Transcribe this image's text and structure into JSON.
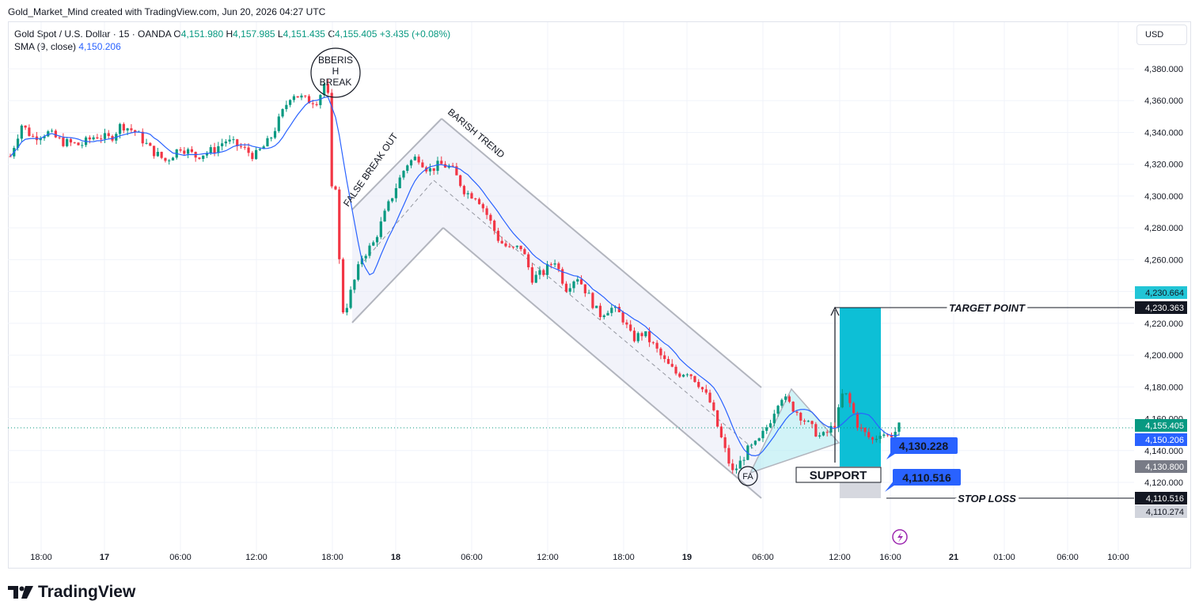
{
  "header": "Gold_Market_Mind created with TradingView.com, Jun 20, 2026 04:27 UTC",
  "legend": {
    "symbol": "Gold Spot / U.S. Dollar · 15 · OANDA",
    "o_label": "O",
    "o_value": "4,151.980",
    "h_label": "H",
    "h_value": "4,157.985",
    "l_label": "L",
    "l_value": "4,151.435",
    "c_label": "C",
    "c_value": "4,155.405",
    "change": "+3.435 (+0.08%)",
    "sma_label": "SMA (9, close)",
    "sma_value": "4,150.206"
  },
  "currency": "USD",
  "brand": "TradingView",
  "colors": {
    "up": "#089981",
    "down": "#f23645",
    "sma": "#2962ff",
    "target": "#00bcd4"
  },
  "chart_data": {
    "type": "candlestick",
    "y_ticks": [
      "4,380.000",
      "4,360.000",
      "4,340.000",
      "4,320.000",
      "4,300.000",
      "4,280.000",
      "4,260.000",
      "4,240.000",
      "4,220.000",
      "4,200.000",
      "4,180.000",
      "4,160.000",
      "4,140.000",
      "4,120.000"
    ],
    "x_ticks": [
      "18:00",
      "17",
      "06:00",
      "12:00",
      "18:00",
      "18",
      "06:00",
      "12:00",
      "18:00",
      "19",
      "06:00",
      "12:00",
      "16:00",
      "21",
      "01:00",
      "06:00",
      "10:00"
    ],
    "ylim": [
      4100,
      4395
    ],
    "price_labels": [
      {
        "value": "4,230.664",
        "color": "#22c5d6",
        "text_color": "#131722"
      },
      {
        "value": "4,230.363",
        "color": "#131722",
        "text_color": "#ffffff"
      },
      {
        "value": "4,155.405",
        "color": "#089981",
        "text_color": "#ffffff"
      },
      {
        "value": "4,150.206",
        "color": "#2962ff",
        "text_color": "#ffffff"
      },
      {
        "value": "4,130.800",
        "color": "#787b86",
        "text_color": "#ffffff"
      },
      {
        "value": "4,110.516",
        "color": "#131722",
        "text_color": "#ffffff"
      },
      {
        "value": "4,110.274",
        "color": "#d1d4dc",
        "text_color": "#131722"
      }
    ],
    "annotations": {
      "target_point": "TARGET POINT",
      "stop_loss": "STOP LOSS",
      "support": "SUPPORT",
      "false_break": "FALSE BREAK OUT",
      "barish_trend": "BARISH TREND",
      "bberish_l1": "BBERIS",
      "bberish_l2": "H",
      "bberish_l3": "BREAK",
      "fa": "FA",
      "label_4130": "4,130.228",
      "label_4110": "4,110.516"
    },
    "anchors": [
      {
        "t": 0,
        "p": 4325
      },
      {
        "t": 3,
        "p": 4345
      },
      {
        "t": 6,
        "p": 4337
      },
      {
        "t": 10,
        "p": 4340
      },
      {
        "t": 14,
        "p": 4334
      },
      {
        "t": 19,
        "p": 4332
      },
      {
        "t": 23,
        "p": 4338
      },
      {
        "t": 27,
        "p": 4336
      },
      {
        "t": 30,
        "p": 4345
      },
      {
        "t": 34,
        "p": 4340
      },
      {
        "t": 38,
        "p": 4329
      },
      {
        "t": 42,
        "p": 4322
      },
      {
        "t": 46,
        "p": 4331
      },
      {
        "t": 50,
        "p": 4325
      },
      {
        "t": 55,
        "p": 4329
      },
      {
        "t": 58,
        "p": 4335
      },
      {
        "t": 62,
        "p": 4331
      },
      {
        "t": 66,
        "p": 4325
      },
      {
        "t": 70,
        "p": 4335
      },
      {
        "t": 73,
        "p": 4350
      },
      {
        "t": 76,
        "p": 4365
      },
      {
        "t": 80,
        "p": 4360
      },
      {
        "t": 83,
        "p": 4360
      },
      {
        "t": 85,
        "p": 4372
      },
      {
        "t": 86,
        "p": 4360
      },
      {
        "t": 87,
        "p": 4290
      },
      {
        "t": 88,
        "p": 4310
      },
      {
        "t": 89,
        "p": 4250
      },
      {
        "t": 90,
        "p": 4225
      },
      {
        "t": 92,
        "p": 4240
      },
      {
        "t": 95,
        "p": 4262
      },
      {
        "t": 98,
        "p": 4270
      },
      {
        "t": 101,
        "p": 4288
      },
      {
        "t": 104,
        "p": 4305
      },
      {
        "t": 107,
        "p": 4320
      },
      {
        "t": 110,
        "p": 4325
      },
      {
        "t": 113,
        "p": 4316
      },
      {
        "t": 116,
        "p": 4320
      },
      {
        "t": 119,
        "p": 4318
      },
      {
        "t": 121,
        "p": 4310
      },
      {
        "t": 123,
        "p": 4302
      },
      {
        "t": 126,
        "p": 4300
      },
      {
        "t": 129,
        "p": 4287
      },
      {
        "t": 132,
        "p": 4272
      },
      {
        "t": 135,
        "p": 4266
      },
      {
        "t": 138,
        "p": 4268
      },
      {
        "t": 141,
        "p": 4248
      },
      {
        "t": 144,
        "p": 4252
      },
      {
        "t": 147,
        "p": 4260
      },
      {
        "t": 150,
        "p": 4242
      },
      {
        "t": 153,
        "p": 4250
      },
      {
        "t": 156,
        "p": 4238
      },
      {
        "t": 159,
        "p": 4225
      },
      {
        "t": 162,
        "p": 4230
      },
      {
        "t": 165,
        "p": 4225
      },
      {
        "t": 168,
        "p": 4210
      },
      {
        "t": 171,
        "p": 4214
      },
      {
        "t": 174,
        "p": 4205
      },
      {
        "t": 177,
        "p": 4195
      },
      {
        "t": 180,
        "p": 4188
      },
      {
        "t": 183,
        "p": 4190
      },
      {
        "t": 186,
        "p": 4182
      },
      {
        "t": 189,
        "p": 4170
      },
      {
        "t": 191,
        "p": 4155
      },
      {
        "t": 193,
        "p": 4140
      },
      {
        "t": 195,
        "p": 4126
      },
      {
        "t": 197,
        "p": 4132
      },
      {
        "t": 199,
        "p": 4140
      },
      {
        "t": 202,
        "p": 4145
      },
      {
        "t": 205,
        "p": 4158
      },
      {
        "t": 208,
        "p": 4175
      },
      {
        "t": 210,
        "p": 4170
      },
      {
        "t": 213,
        "p": 4163
      },
      {
        "t": 216,
        "p": 4155
      },
      {
        "t": 219,
        "p": 4148
      },
      {
        "t": 221,
        "p": 4152
      },
      {
        "t": 223,
        "p": 4158
      },
      {
        "t": 225,
        "p": 4178
      },
      {
        "t": 227,
        "p": 4168
      },
      {
        "t": 229,
        "p": 4155
      },
      {
        "t": 231,
        "p": 4150
      },
      {
        "t": 233,
        "p": 4146
      },
      {
        "t": 235,
        "p": 4152
      },
      {
        "t": 237,
        "p": 4149
      },
      {
        "t": 239,
        "p": 4152
      },
      {
        "t": 240,
        "p": 4155
      }
    ]
  }
}
